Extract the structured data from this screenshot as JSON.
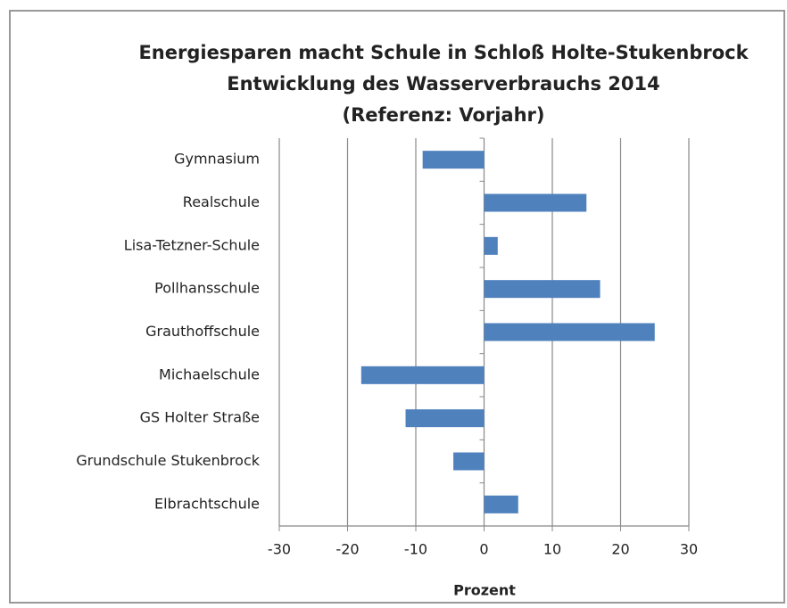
{
  "chart_data": {
    "type": "barh",
    "title": [
      "Energiesparen macht Schule in Schloß Holte-Stukenbrock",
      "Entwicklung des Wasserverbrauchs 2014",
      "(Referenz: Vorjahr)"
    ],
    "categories": [
      "Gymnasium",
      "Realschule",
      "Lisa-Tetzner-Schule",
      "Pollhansschule",
      "Grauthoffschule",
      "Michaelschule",
      "GS Holter Straße",
      "Grundschule Stukenbrock",
      "Elbrachtschule"
    ],
    "values": [
      -9,
      15,
      2,
      17,
      25,
      -18,
      -11.5,
      -4.5,
      5
    ],
    "color": "#4f81bd",
    "xlim": [
      -30,
      30
    ],
    "xticks": [
      -30,
      -20,
      -10,
      0,
      10,
      20,
      30
    ],
    "xlabel": "Prozent",
    "grid": true
  }
}
